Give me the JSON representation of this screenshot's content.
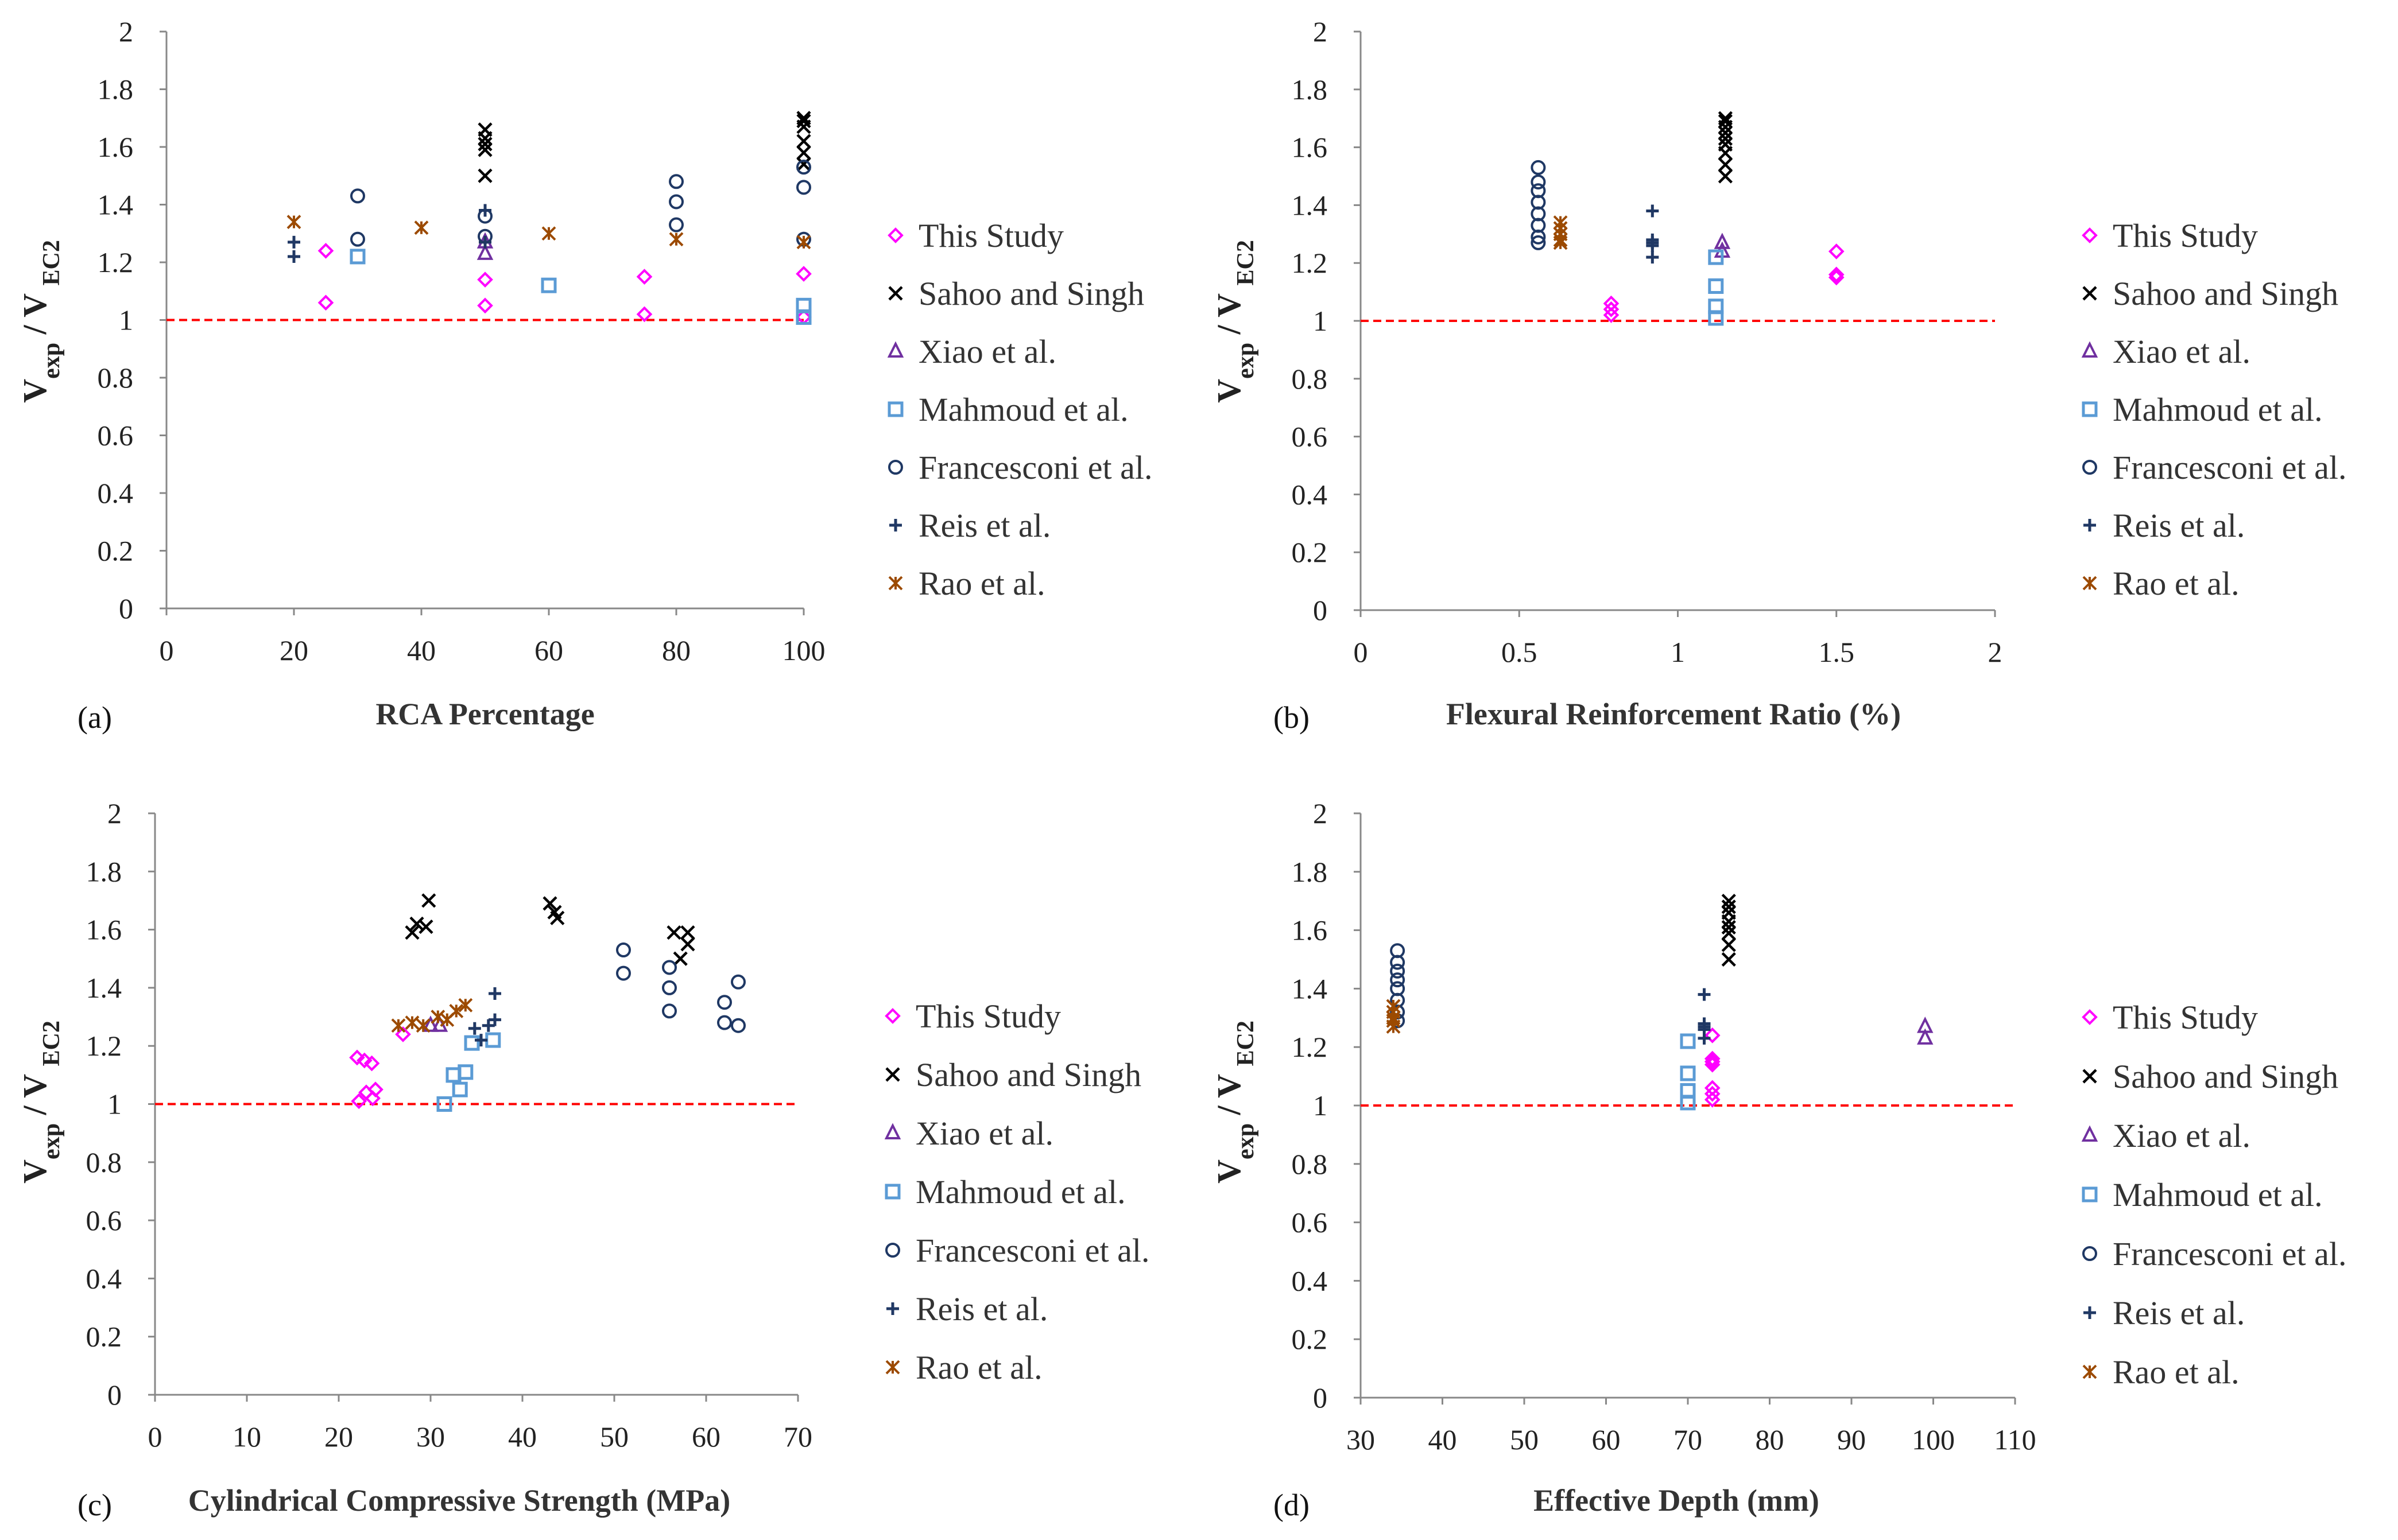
{
  "colors": {
    "this_study": "#ff00ff",
    "sahoo": "#000000",
    "xiao": "#7030a0",
    "mahmoud": "#5b9bd5",
    "francesconi": "#1f3864",
    "reis": "#203864",
    "rao": "#9c4a00",
    "reference": "#ff0000"
  },
  "chart_data": [
    {
      "panel": "(a)",
      "type": "scatter",
      "xlabel": "RCA Percentage",
      "ylabel_main": "V",
      "ylabel_sub1": "exp",
      "ylabel_sep": " / V ",
      "ylabel_sub2": "EC2",
      "xlim": [
        0,
        100
      ],
      "ylim": [
        0,
        2
      ],
      "xticks": [
        0,
        20,
        40,
        60,
        80,
        100
      ],
      "yticks": [
        0,
        0.2,
        0.4,
        0.6,
        0.8,
        1,
        1.2,
        1.4,
        1.6,
        1.8,
        2
      ],
      "xtick_labels": [
        "0",
        "20",
        "40",
        "60",
        "80",
        "100"
      ],
      "ytick_labels": [
        "0",
        "0.2",
        "0.4",
        "0.6",
        "0.8",
        "1",
        "1.2",
        "1.4",
        "1.6",
        "1.8",
        "2"
      ],
      "reference_y": 1,
      "legend": [
        "This Study",
        "Sahoo and Singh",
        "Xiao et al.",
        "Mahmoud et al.",
        "Francesconi et al.",
        "Reis et al.",
        "Rao et al."
      ],
      "series": [
        {
          "name": "This Study",
          "marker": "diamond",
          "points": [
            [
              25,
              1.24
            ],
            [
              25,
              1.06
            ],
            [
              50,
              1.14
            ],
            [
              50,
              1.05
            ],
            [
              75,
              1.15
            ],
            [
              75,
              1.02
            ],
            [
              100,
              1.16
            ],
            [
              100,
              1.01
            ]
          ]
        },
        {
          "name": "Sahoo and Singh",
          "marker": "x",
          "points": [
            [
              50,
              1.66
            ],
            [
              50,
              1.63
            ],
            [
              50,
              1.61
            ],
            [
              50,
              1.59
            ],
            [
              50,
              1.5
            ],
            [
              100,
              1.7
            ],
            [
              100,
              1.69
            ],
            [
              100,
              1.67
            ],
            [
              100,
              1.62
            ],
            [
              100,
              1.58
            ],
            [
              100,
              1.54
            ]
          ]
        },
        {
          "name": "Xiao et al.",
          "marker": "triangle",
          "points": [
            [
              50,
              1.27
            ],
            [
              50,
              1.23
            ]
          ]
        },
        {
          "name": "Mahmoud et al.",
          "marker": "square",
          "points": [
            [
              30,
              1.22
            ],
            [
              60,
              1.12
            ],
            [
              100,
              1.05
            ],
            [
              100,
              1.01
            ]
          ]
        },
        {
          "name": "Francesconi et al.",
          "marker": "circle",
          "points": [
            [
              30,
              1.43
            ],
            [
              30,
              1.28
            ],
            [
              50,
              1.36
            ],
            [
              50,
              1.29
            ],
            [
              80,
              1.48
            ],
            [
              80,
              1.41
            ],
            [
              80,
              1.33
            ],
            [
              100,
              1.53
            ],
            [
              100,
              1.46
            ],
            [
              100,
              1.28
            ]
          ]
        },
        {
          "name": "Reis et al.",
          "marker": "plus",
          "points": [
            [
              20,
              1.27
            ],
            [
              20,
              1.22
            ],
            [
              50,
              1.38
            ],
            [
              50,
              1.27
            ]
          ]
        },
        {
          "name": "Rao et al.",
          "marker": "star",
          "points": [
            [
              20,
              1.34
            ],
            [
              40,
              1.32
            ],
            [
              60,
              1.3
            ],
            [
              80,
              1.28
            ],
            [
              100,
              1.27
            ]
          ]
        }
      ]
    },
    {
      "panel": "(b)",
      "type": "scatter",
      "xlabel": "Flexural Reinforcement Ratio (%)",
      "ylabel_main": "V",
      "ylabel_sub1": "exp",
      "ylabel_sep": " / V ",
      "ylabel_sub2": "EC2",
      "xlim": [
        0,
        2
      ],
      "ylim": [
        0,
        2
      ],
      "xticks": [
        0,
        0.5,
        1,
        1.5,
        2
      ],
      "yticks": [
        0,
        0.2,
        0.4,
        0.6,
        0.8,
        1,
        1.2,
        1.4,
        1.6,
        1.8,
        2
      ],
      "xtick_labels": [
        "0",
        "0.5",
        "1",
        "1.5",
        "2"
      ],
      "ytick_labels": [
        "0",
        "0.2",
        "0.4",
        "0.6",
        "0.8",
        "1",
        "1.2",
        "1.4",
        "1.6",
        "1.8",
        "2"
      ],
      "reference_y": 1,
      "legend": [
        "This Study",
        "Sahoo and Singh",
        "Xiao et al.",
        "Mahmoud et al.",
        "Francesconi et al.",
        "Reis et al.",
        "Rao et al."
      ],
      "series": [
        {
          "name": "This Study",
          "marker": "diamond",
          "points": [
            [
              0.79,
              1.06
            ],
            [
              0.79,
              1.04
            ],
            [
              0.79,
              1.02
            ],
            [
              1.5,
              1.24
            ],
            [
              1.5,
              1.16
            ],
            [
              1.5,
              1.15
            ]
          ]
        },
        {
          "name": "Sahoo and Singh",
          "marker": "x",
          "points": [
            [
              1.15,
              1.7
            ],
            [
              1.15,
              1.69
            ],
            [
              1.15,
              1.67
            ],
            [
              1.15,
              1.65
            ],
            [
              1.15,
              1.63
            ],
            [
              1.15,
              1.61
            ],
            [
              1.15,
              1.58
            ],
            [
              1.15,
              1.54
            ],
            [
              1.15,
              1.5
            ]
          ]
        },
        {
          "name": "Xiao et al.",
          "marker": "triangle",
          "points": [
            [
              1.14,
              1.27
            ],
            [
              1.14,
              1.24
            ]
          ]
        },
        {
          "name": "Mahmoud et al.",
          "marker": "square",
          "points": [
            [
              1.12,
              1.22
            ],
            [
              1.12,
              1.12
            ],
            [
              1.12,
              1.05
            ],
            [
              1.12,
              1.01
            ]
          ]
        },
        {
          "name": "Francesconi et al.",
          "marker": "circle",
          "points": [
            [
              0.56,
              1.53
            ],
            [
              0.56,
              1.48
            ],
            [
              0.56,
              1.45
            ],
            [
              0.56,
              1.41
            ],
            [
              0.56,
              1.37
            ],
            [
              0.56,
              1.33
            ],
            [
              0.56,
              1.29
            ],
            [
              0.56,
              1.27
            ]
          ]
        },
        {
          "name": "Reis et al.",
          "marker": "plus",
          "points": [
            [
              0.92,
              1.38
            ],
            [
              0.92,
              1.28
            ],
            [
              0.92,
              1.27
            ],
            [
              0.92,
              1.26
            ],
            [
              0.92,
              1.22
            ]
          ]
        },
        {
          "name": "Rao et al.",
          "marker": "star",
          "points": [
            [
              0.63,
              1.34
            ],
            [
              0.63,
              1.32
            ],
            [
              0.63,
              1.3
            ],
            [
              0.63,
              1.28
            ],
            [
              0.63,
              1.27
            ]
          ]
        }
      ]
    },
    {
      "panel": "(c)",
      "type": "scatter",
      "xlabel": "Cylindrical Compressive Strength (MPa)",
      "ylabel_main": "V",
      "ylabel_sub1": "exp",
      "ylabel_sep": " / V ",
      "ylabel_sub2": "EC2",
      "xlim": [
        0,
        70
      ],
      "ylim": [
        0,
        2
      ],
      "xticks": [
        0,
        10,
        20,
        30,
        40,
        50,
        60,
        70
      ],
      "yticks": [
        0,
        0.2,
        0.4,
        0.6,
        0.8,
        1,
        1.2,
        1.4,
        1.6,
        1.8,
        2
      ],
      "xtick_labels": [
        "0",
        "10",
        "20",
        "30",
        "40",
        "50",
        "60",
        "70"
      ],
      "ytick_labels": [
        "0",
        "0.2",
        "0.4",
        "0.6",
        "0.8",
        "1",
        "1.2",
        "1.4",
        "1.6",
        "1.8",
        "2"
      ],
      "reference_y": 1,
      "legend": [
        "This Study",
        "Sahoo and Singh",
        "Xiao et al.",
        "Mahmoud et al.",
        "Francesconi et al.",
        "Reis et al.",
        "Rao et al."
      ],
      "series": [
        {
          "name": "This Study",
          "marker": "diamond",
          "points": [
            [
              22,
              1.16
            ],
            [
              22.8,
              1.15
            ],
            [
              23.6,
              1.14
            ],
            [
              22.2,
              1.01
            ],
            [
              23,
              1.04
            ],
            [
              24,
              1.05
            ],
            [
              23.7,
              1.02
            ],
            [
              27,
              1.24
            ]
          ]
        },
        {
          "name": "Sahoo and Singh",
          "marker": "x",
          "points": [
            [
              28,
              1.59
            ],
            [
              28.5,
              1.62
            ],
            [
              29.5,
              1.61
            ],
            [
              29.8,
              1.7
            ],
            [
              43,
              1.69
            ],
            [
              43.5,
              1.66
            ],
            [
              43.8,
              1.64
            ],
            [
              56.5,
              1.59
            ],
            [
              57.2,
              1.5
            ],
            [
              58,
              1.59
            ],
            [
              58,
              1.55
            ]
          ]
        },
        {
          "name": "Xiao et al.",
          "marker": "triangle",
          "points": [
            [
              30,
              1.27
            ],
            [
              31,
              1.27
            ]
          ]
        },
        {
          "name": "Mahmoud et al.",
          "marker": "square",
          "points": [
            [
              31.5,
              1.0
            ],
            [
              32.5,
              1.1
            ],
            [
              33.2,
              1.05
            ],
            [
              33.8,
              1.11
            ],
            [
              34.5,
              1.21
            ],
            [
              36.8,
              1.22
            ]
          ]
        },
        {
          "name": "Francesconi et al.",
          "marker": "circle",
          "points": [
            [
              51,
              1.53
            ],
            [
              51,
              1.45
            ],
            [
              56,
              1.47
            ],
            [
              56,
              1.4
            ],
            [
              56,
              1.32
            ],
            [
              62,
              1.35
            ],
            [
              62,
              1.28
            ],
            [
              63.5,
              1.42
            ],
            [
              63.5,
              1.27
            ]
          ]
        },
        {
          "name": "Reis et al.",
          "marker": "plus",
          "points": [
            [
              34.8,
              1.26
            ],
            [
              35.5,
              1.22
            ],
            [
              36.3,
              1.27
            ],
            [
              37,
              1.29
            ],
            [
              37,
              1.38
            ]
          ]
        },
        {
          "name": "Rao et al.",
          "marker": "star",
          "points": [
            [
              26.5,
              1.27
            ],
            [
              28,
              1.28
            ],
            [
              29.2,
              1.27
            ],
            [
              30.8,
              1.3
            ],
            [
              31.8,
              1.29
            ],
            [
              32.8,
              1.32
            ],
            [
              33.8,
              1.34
            ]
          ]
        }
      ]
    },
    {
      "panel": "(d)",
      "type": "scatter",
      "xlabel": "Effective Depth (mm)",
      "ylabel_main": "V",
      "ylabel_sub1": "exp",
      "ylabel_sep": " / V ",
      "ylabel_sub2": "EC2",
      "xlim": [
        30,
        110
      ],
      "ylim": [
        0,
        2
      ],
      "xticks": [
        30,
        40,
        50,
        60,
        70,
        80,
        90,
        100,
        110
      ],
      "yticks": [
        0,
        0.2,
        0.4,
        0.6,
        0.8,
        1,
        1.2,
        1.4,
        1.6,
        1.8,
        2
      ],
      "xtick_labels": [
        "30",
        "40",
        "50",
        "60",
        "70",
        "80",
        "90",
        "100",
        "110"
      ],
      "ytick_labels": [
        "0",
        "0.2",
        "0.4",
        "0.6",
        "0.8",
        "1",
        "1.2",
        "1.4",
        "1.6",
        "1.8",
        "2"
      ],
      "reference_y": 1,
      "legend": [
        "This Study",
        "Sahoo and Singh",
        "Xiao et al.",
        "Mahmoud et al.",
        "Francesconi et al.",
        "Reis et al.",
        "Rao et al."
      ],
      "series": [
        {
          "name": "This Study",
          "marker": "diamond",
          "points": [
            [
              73,
              1.24
            ],
            [
              73,
              1.16
            ],
            [
              73,
              1.15
            ],
            [
              73,
              1.14
            ],
            [
              73,
              1.06
            ],
            [
              73,
              1.04
            ],
            [
              73,
              1.02
            ]
          ]
        },
        {
          "name": "Sahoo and Singh",
          "marker": "x",
          "points": [
            [
              75,
              1.7
            ],
            [
              75,
              1.68
            ],
            [
              75,
              1.66
            ],
            [
              75,
              1.63
            ],
            [
              75,
              1.61
            ],
            [
              75,
              1.59
            ],
            [
              75,
              1.55
            ],
            [
              75,
              1.5
            ]
          ]
        },
        {
          "name": "Xiao et al.",
          "marker": "triangle",
          "points": [
            [
              99,
              1.27
            ],
            [
              99,
              1.23
            ]
          ]
        },
        {
          "name": "Mahmoud et al.",
          "marker": "square",
          "points": [
            [
              70,
              1.22
            ],
            [
              70,
              1.11
            ],
            [
              70,
              1.05
            ],
            [
              70,
              1.01
            ]
          ]
        },
        {
          "name": "Francesconi et al.",
          "marker": "circle",
          "points": [
            [
              34.5,
              1.53
            ],
            [
              34.5,
              1.49
            ],
            [
              34.5,
              1.46
            ],
            [
              34.5,
              1.43
            ],
            [
              34.5,
              1.4
            ],
            [
              34.5,
              1.36
            ],
            [
              34.5,
              1.32
            ],
            [
              34.5,
              1.29
            ]
          ]
        },
        {
          "name": "Reis et al.",
          "marker": "plus",
          "points": [
            [
              72,
              1.38
            ],
            [
              72,
              1.28
            ],
            [
              72,
              1.27
            ],
            [
              72,
              1.26
            ],
            [
              72,
              1.23
            ]
          ]
        },
        {
          "name": "Rao et al.",
          "marker": "star",
          "points": [
            [
              34,
              1.34
            ],
            [
              34,
              1.32
            ],
            [
              34,
              1.3
            ],
            [
              34,
              1.29
            ],
            [
              34,
              1.27
            ]
          ]
        }
      ]
    }
  ]
}
